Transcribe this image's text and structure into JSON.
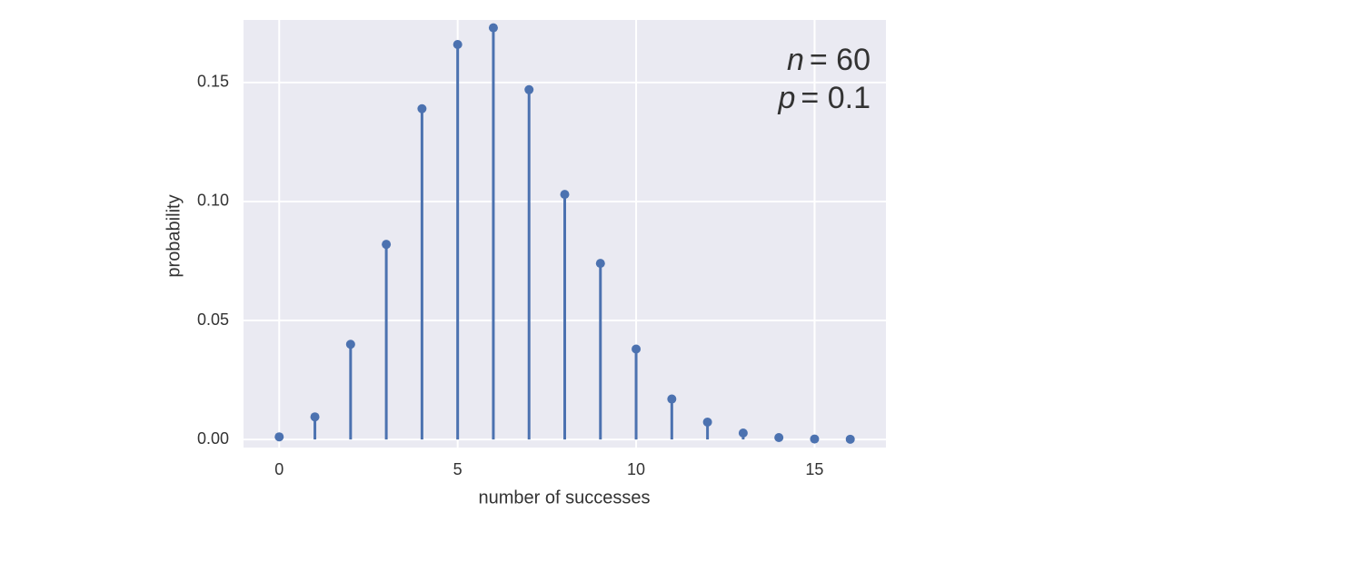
{
  "chart_data": {
    "type": "stem",
    "x_label": "number of successes",
    "y_label": "probability",
    "annotations": [
      {
        "symbol": "n",
        "text": "= 60"
      },
      {
        "symbol": "p",
        "text": "= 0.1"
      }
    ],
    "x": [
      0,
      1,
      2,
      3,
      4,
      5,
      6,
      7,
      8,
      9,
      10,
      11,
      12,
      13,
      14,
      15,
      16
    ],
    "values": [
      0.0011,
      0.0095,
      0.04,
      0.082,
      0.139,
      0.166,
      0.173,
      0.147,
      0.103,
      0.074,
      0.038,
      0.017,
      0.0073,
      0.0027,
      0.0008,
      0.0002,
      0.0001
    ],
    "color": "#4c72b0",
    "xlim": [
      -1,
      17
    ],
    "ylim": [
      -0.0034,
      0.1763
    ],
    "xticks": [
      0,
      5,
      10,
      15
    ],
    "yticks": [
      {
        "value": 0,
        "label": "0.00"
      },
      {
        "value": 0.05,
        "label": "0.05"
      },
      {
        "value": 0.1,
        "label": "0.10"
      },
      {
        "value": 0.15,
        "label": "0.15"
      }
    ],
    "grid": true
  }
}
